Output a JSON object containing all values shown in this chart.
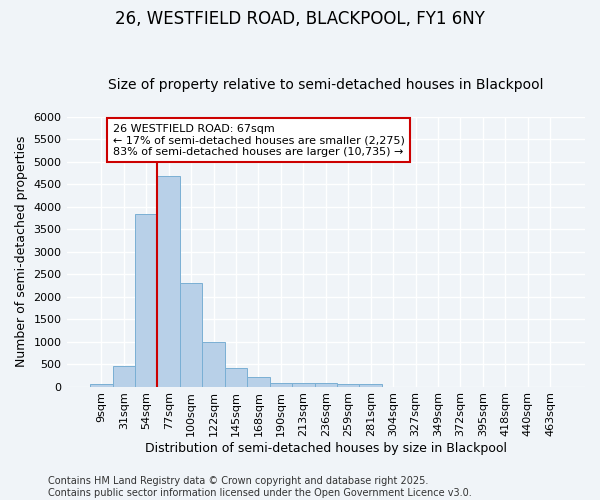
{
  "title1": "26, WESTFIELD ROAD, BLACKPOOL, FY1 6NY",
  "title2": "Size of property relative to semi-detached houses in Blackpool",
  "xlabel": "Distribution of semi-detached houses by size in Blackpool",
  "ylabel": "Number of semi-detached properties",
  "categories": [
    "9sqm",
    "31sqm",
    "54sqm",
    "77sqm",
    "100sqm",
    "122sqm",
    "145sqm",
    "168sqm",
    "190sqm",
    "213sqm",
    "236sqm",
    "259sqm",
    "281sqm",
    "304sqm",
    "327sqm",
    "349sqm",
    "372sqm",
    "395sqm",
    "418sqm",
    "440sqm",
    "463sqm"
  ],
  "values": [
    50,
    450,
    3830,
    4680,
    2300,
    1000,
    410,
    210,
    90,
    70,
    70,
    50,
    50,
    0,
    0,
    0,
    0,
    0,
    0,
    0,
    0
  ],
  "bar_color": "#b8d0e8",
  "bar_edge_color": "#7aafd4",
  "background_color": "#f0f4f8",
  "grid_color": "#ffffff",
  "annotation_line1": "26 WESTFIELD ROAD: 67sqm",
  "annotation_line2": "← 17% of semi-detached houses are smaller (2,275)",
  "annotation_line3": "83% of semi-detached houses are larger (10,735) →",
  "annotation_box_color": "#ffffff",
  "annotation_box_edge_color": "#cc0000",
  "vline_color": "#cc0000",
  "vline_x_index": 3,
  "ylim": [
    0,
    6000
  ],
  "yticks": [
    0,
    500,
    1000,
    1500,
    2000,
    2500,
    3000,
    3500,
    4000,
    4500,
    5000,
    5500,
    6000
  ],
  "footer_text": "Contains HM Land Registry data © Crown copyright and database right 2025.\nContains public sector information licensed under the Open Government Licence v3.0.",
  "title_fontsize": 12,
  "subtitle_fontsize": 10,
  "axis_label_fontsize": 9,
  "tick_fontsize": 8,
  "annotation_fontsize": 8,
  "footer_fontsize": 7
}
